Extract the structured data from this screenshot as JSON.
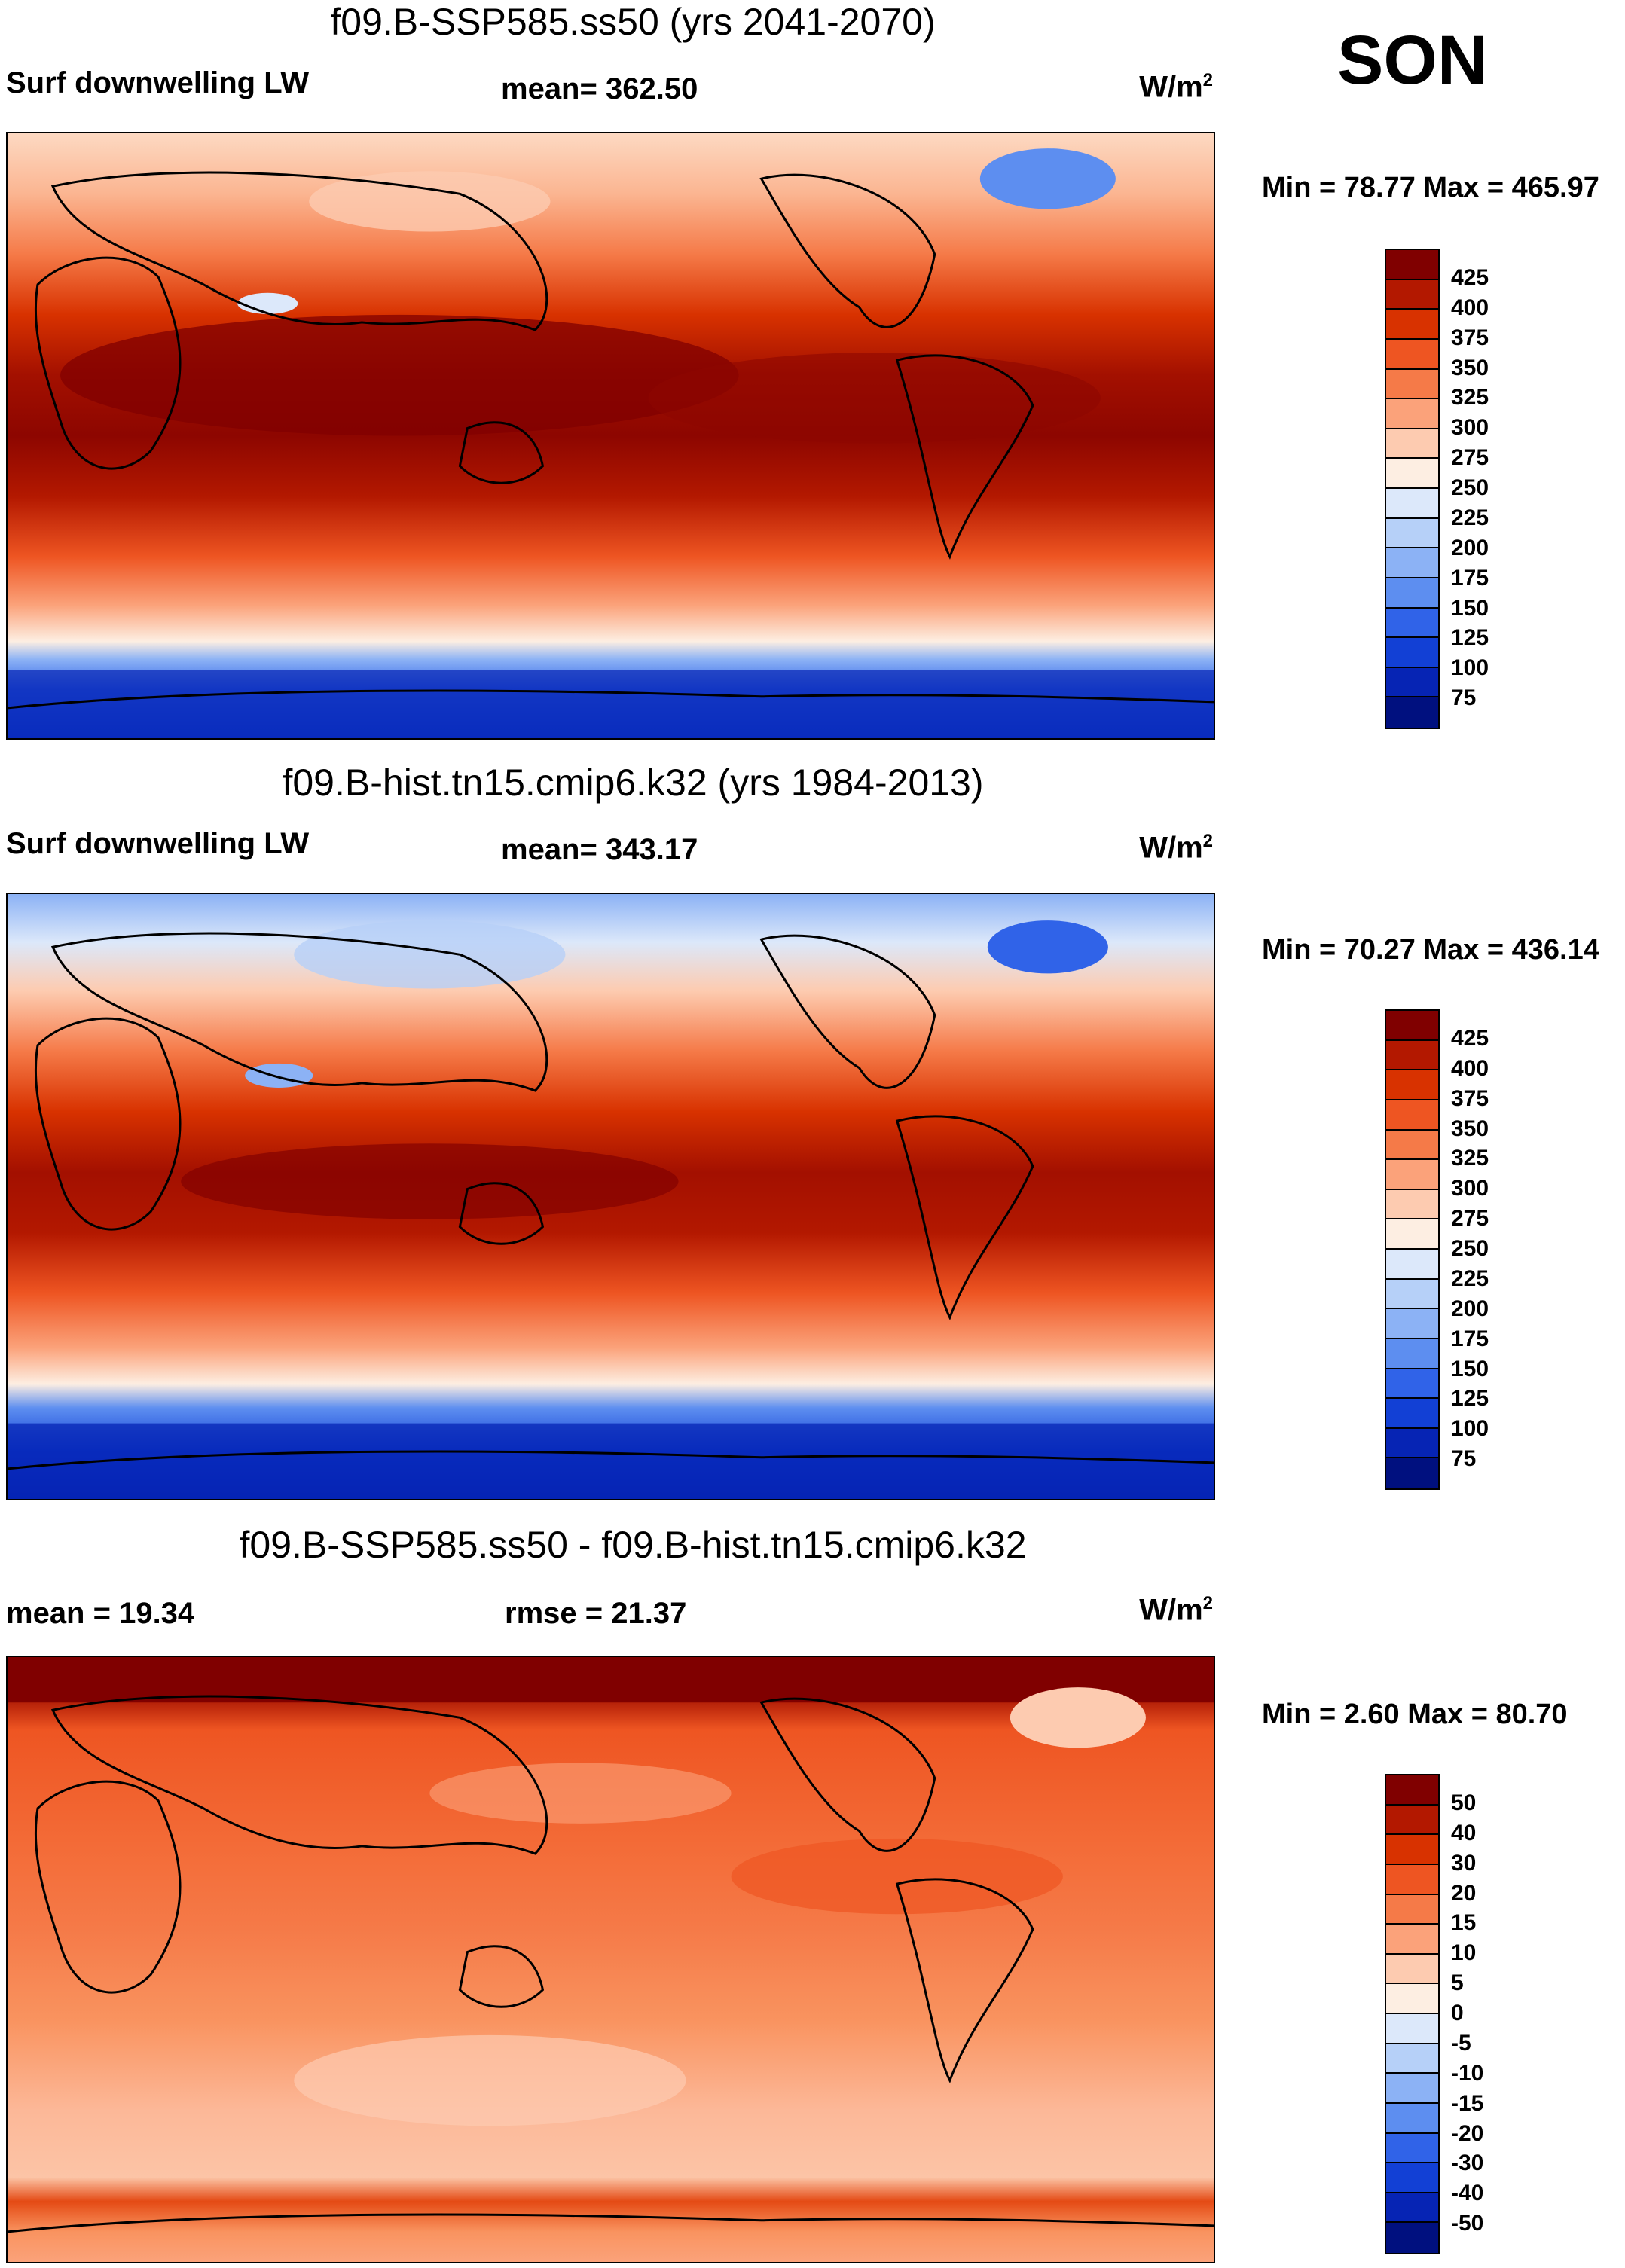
{
  "season": "SON",
  "panels": [
    {
      "title": "f09.B-SSP585.ss50 (yrs 2041-2070)",
      "left_label": "Surf downwelling LW",
      "center_label": "mean= 362.50",
      "units_base": "W/m",
      "units_exp": "2",
      "minmax": "Min =  78.77 Max = 465.97",
      "colorbar": {
        "colors": [
          "#800000",
          "#b31800",
          "#d83200",
          "#ee5522",
          "#f57a48",
          "#fba27a",
          "#fdcbb0",
          "#fdeee2",
          "#dce8fa",
          "#b6d0f8",
          "#8cb2f5",
          "#5d8ef0",
          "#3063e8",
          "#1240d5",
          "#0624b4",
          "#00107f"
        ],
        "labels": [
          "425",
          "400",
          "375",
          "350",
          "325",
          "300",
          "275",
          "250",
          "225",
          "200",
          "175",
          "150",
          "125",
          "100",
          "75"
        ]
      }
    },
    {
      "title": "f09.B-hist.tn15.cmip6.k32 (yrs 1984-2013)",
      "left_label": "Surf downwelling LW",
      "center_label": "mean= 343.17",
      "units_base": "W/m",
      "units_exp": "2",
      "minmax": "Min =  70.27 Max = 436.14",
      "colorbar": {
        "colors": [
          "#800000",
          "#b31800",
          "#d83200",
          "#ee5522",
          "#f57a48",
          "#fba27a",
          "#fdcbb0",
          "#fdeee2",
          "#dce8fa",
          "#b6d0f8",
          "#8cb2f5",
          "#5d8ef0",
          "#3063e8",
          "#1240d5",
          "#0624b4",
          "#00107f"
        ],
        "labels": [
          "425",
          "400",
          "375",
          "350",
          "325",
          "300",
          "275",
          "250",
          "225",
          "200",
          "175",
          "150",
          "125",
          "100",
          "75"
        ]
      }
    },
    {
      "title": "f09.B-SSP585.ss50 - f09.B-hist.tn15.cmip6.k32",
      "left_label": "mean =  19.34",
      "center_label": "rmse =  21.37",
      "units_base": "W/m",
      "units_exp": "2",
      "minmax": "Min =   2.60 Max =  80.70",
      "colorbar": {
        "colors": [
          "#800000",
          "#b31800",
          "#d83200",
          "#ee5522",
          "#f57a48",
          "#fba27a",
          "#fdcbb0",
          "#fdeee2",
          "#dce8fa",
          "#b6d0f8",
          "#8cb2f5",
          "#5d8ef0",
          "#3063e8",
          "#1240d5",
          "#0624b4",
          "#00107f"
        ],
        "labels": [
          "50",
          "40",
          "30",
          "20",
          "15",
          "10",
          "5",
          "0",
          "-5",
          "-10",
          "-15",
          "-20",
          "-30",
          "-40",
          "-50"
        ]
      }
    }
  ]
}
